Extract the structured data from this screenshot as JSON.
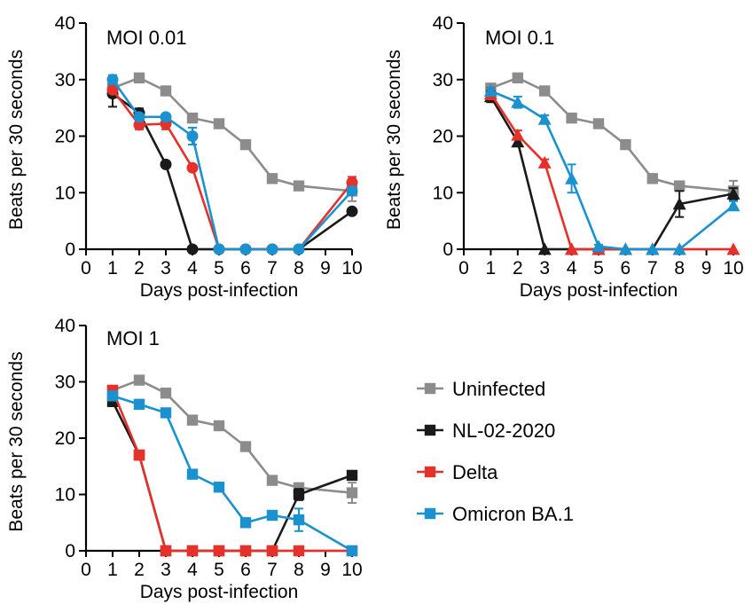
{
  "chart_data": [
    {
      "type": "line",
      "title": "MOI 0.01",
      "xlabel": "Days post-infection",
      "ylabel": "Beats per 30 seconds",
      "xlim": [
        0,
        10
      ],
      "ylim": [
        0,
        40
      ],
      "xticks": [
        "0",
        "1",
        "2",
        "3",
        "4",
        "5",
        "6",
        "7",
        "8",
        "9",
        "10"
      ],
      "yticks": [
        "0",
        "10",
        "20",
        "30",
        "40"
      ],
      "x": [
        1,
        2,
        3,
        4,
        5,
        6,
        7,
        8,
        10
      ],
      "series": [
        {
          "name": "Uninfected",
          "color": "#8c8c8c",
          "marker": "square",
          "values": [
            28.5,
            30.3,
            28,
            23.2,
            22.2,
            18.5,
            12.5,
            11.2,
            10.3
          ],
          "errors": [
            0.5,
            0.5,
            0.5,
            0.5,
            0.5,
            0.6,
            0.5,
            0.5,
            1.8
          ]
        },
        {
          "name": "NL-02-2020",
          "color": "#1a1a1a",
          "marker": "circle",
          "values": [
            27.5,
            24.1,
            15,
            0,
            0,
            0,
            0,
            0,
            6.7
          ],
          "errors": [
            2.3,
            0.8,
            0.3,
            0,
            0,
            0,
            0,
            0,
            0.5
          ]
        },
        {
          "name": "Delta",
          "color": "#e5312a",
          "marker": "circle",
          "values": [
            28.2,
            22,
            22.2,
            14.4,
            0,
            0,
            0,
            0,
            11.8
          ],
          "errors": [
            0.6,
            0.8,
            1.0,
            0.3,
            0,
            0,
            0,
            0,
            1.0
          ]
        },
        {
          "name": "Omicron BA.1",
          "color": "#1a92d0",
          "marker": "circle",
          "values": [
            30,
            23.4,
            23.4,
            20,
            0,
            0,
            0,
            0,
            10.3
          ],
          "errors": [
            0.8,
            0.5,
            0.5,
            1.5,
            0,
            0,
            0,
            0,
            0.5
          ]
        }
      ]
    },
    {
      "type": "line",
      "title": "MOI 0.1",
      "xlabel": "Days post-infection",
      "ylabel": "Beats per 30 seconds",
      "xlim": [
        0,
        10
      ],
      "ylim": [
        0,
        40
      ],
      "xticks": [
        "0",
        "1",
        "2",
        "3",
        "4",
        "5",
        "6",
        "7",
        "8",
        "9",
        "10"
      ],
      "yticks": [
        "0",
        "10",
        "20",
        "30",
        "40"
      ],
      "x": [
        1,
        2,
        3,
        4,
        5,
        6,
        7,
        8,
        10
      ],
      "series": [
        {
          "name": "Uninfected",
          "color": "#8c8c8c",
          "marker": "square",
          "values": [
            28.5,
            30.3,
            28,
            23.2,
            22.2,
            18.5,
            12.5,
            11.2,
            10.3
          ],
          "errors": [
            0.5,
            0.5,
            0.5,
            0.5,
            0.5,
            0.6,
            0.5,
            0.5,
            1.8
          ]
        },
        {
          "name": "NL-02-2020",
          "color": "#1a1a1a",
          "marker": "triangle",
          "values": [
            27,
            19,
            0,
            0,
            0,
            0,
            0,
            8,
            9.8
          ],
          "errors": [
            1.0,
            0.6,
            0,
            0,
            0,
            0,
            0,
            2.3,
            1.0
          ]
        },
        {
          "name": "Delta",
          "color": "#e5312a",
          "marker": "triangle",
          "values": [
            27.5,
            20.2,
            15.3,
            0,
            0,
            0,
            0,
            0,
            0
          ],
          "errors": [
            1.0,
            0.8,
            0.6,
            0,
            0,
            0,
            0,
            0,
            0
          ]
        },
        {
          "name": "Omicron BA.1",
          "color": "#1a92d0",
          "marker": "triangle",
          "values": [
            28,
            26,
            23,
            12.5,
            0.5,
            0,
            0,
            0,
            7.7
          ],
          "errors": [
            0.6,
            1.0,
            0.7,
            2.5,
            0.3,
            0,
            0,
            0,
            0.8
          ]
        }
      ]
    },
    {
      "type": "line",
      "title": "MOI 1",
      "xlabel": "Days post-infection",
      "ylabel": "Beats per 30 seconds",
      "xlim": [
        0,
        10
      ],
      "ylim": [
        0,
        40
      ],
      "xticks": [
        "0",
        "1",
        "2",
        "3",
        "4",
        "5",
        "6",
        "7",
        "8",
        "9",
        "10"
      ],
      "yticks": [
        "0",
        "10",
        "20",
        "30",
        "40"
      ],
      "x": [
        1,
        2,
        3,
        4,
        5,
        6,
        7,
        8,
        10
      ],
      "series": [
        {
          "name": "Uninfected",
          "color": "#8c8c8c",
          "marker": "square",
          "values": [
            28.5,
            30.3,
            28,
            23.2,
            22.2,
            18.5,
            12.5,
            11.2,
            10.3
          ],
          "errors": [
            0.5,
            0.5,
            0.5,
            0.5,
            0.5,
            0.6,
            0.5,
            0.5,
            1.8
          ]
        },
        {
          "name": "NL-02-2020",
          "color": "#1a1a1a",
          "marker": "square",
          "values": [
            26.5,
            17,
            0,
            0,
            0,
            0,
            0,
            10,
            13.4
          ],
          "errors": [
            0.8,
            0.6,
            0,
            0,
            0,
            0,
            0,
            1.0,
            0.5
          ]
        },
        {
          "name": "Delta",
          "color": "#e5312a",
          "marker": "square",
          "values": [
            28.5,
            17,
            0,
            0,
            0,
            0,
            0,
            0,
            0
          ],
          "errors": [
            0.5,
            0.6,
            0,
            0,
            0,
            0,
            0,
            0,
            0
          ]
        },
        {
          "name": "Omicron BA.1",
          "color": "#1a92d0",
          "marker": "square",
          "values": [
            27.5,
            26,
            24.5,
            13.6,
            11.3,
            5,
            6.3,
            5.5,
            0
          ],
          "errors": [
            0.6,
            0.8,
            0.5,
            0.5,
            0.5,
            0.5,
            0.5,
            2.0,
            0
          ]
        }
      ]
    }
  ],
  "legend": {
    "placement": "bottom-right",
    "items": [
      {
        "label": "Uninfected",
        "color": "#8c8c8c",
        "marker": "square"
      },
      {
        "label": "NL-02-2020",
        "color": "#1a1a1a",
        "marker": "square"
      },
      {
        "label": "Delta",
        "color": "#e5312a",
        "marker": "square"
      },
      {
        "label": "Omicron BA.1",
        "color": "#1a92d0",
        "marker": "square"
      }
    ]
  }
}
